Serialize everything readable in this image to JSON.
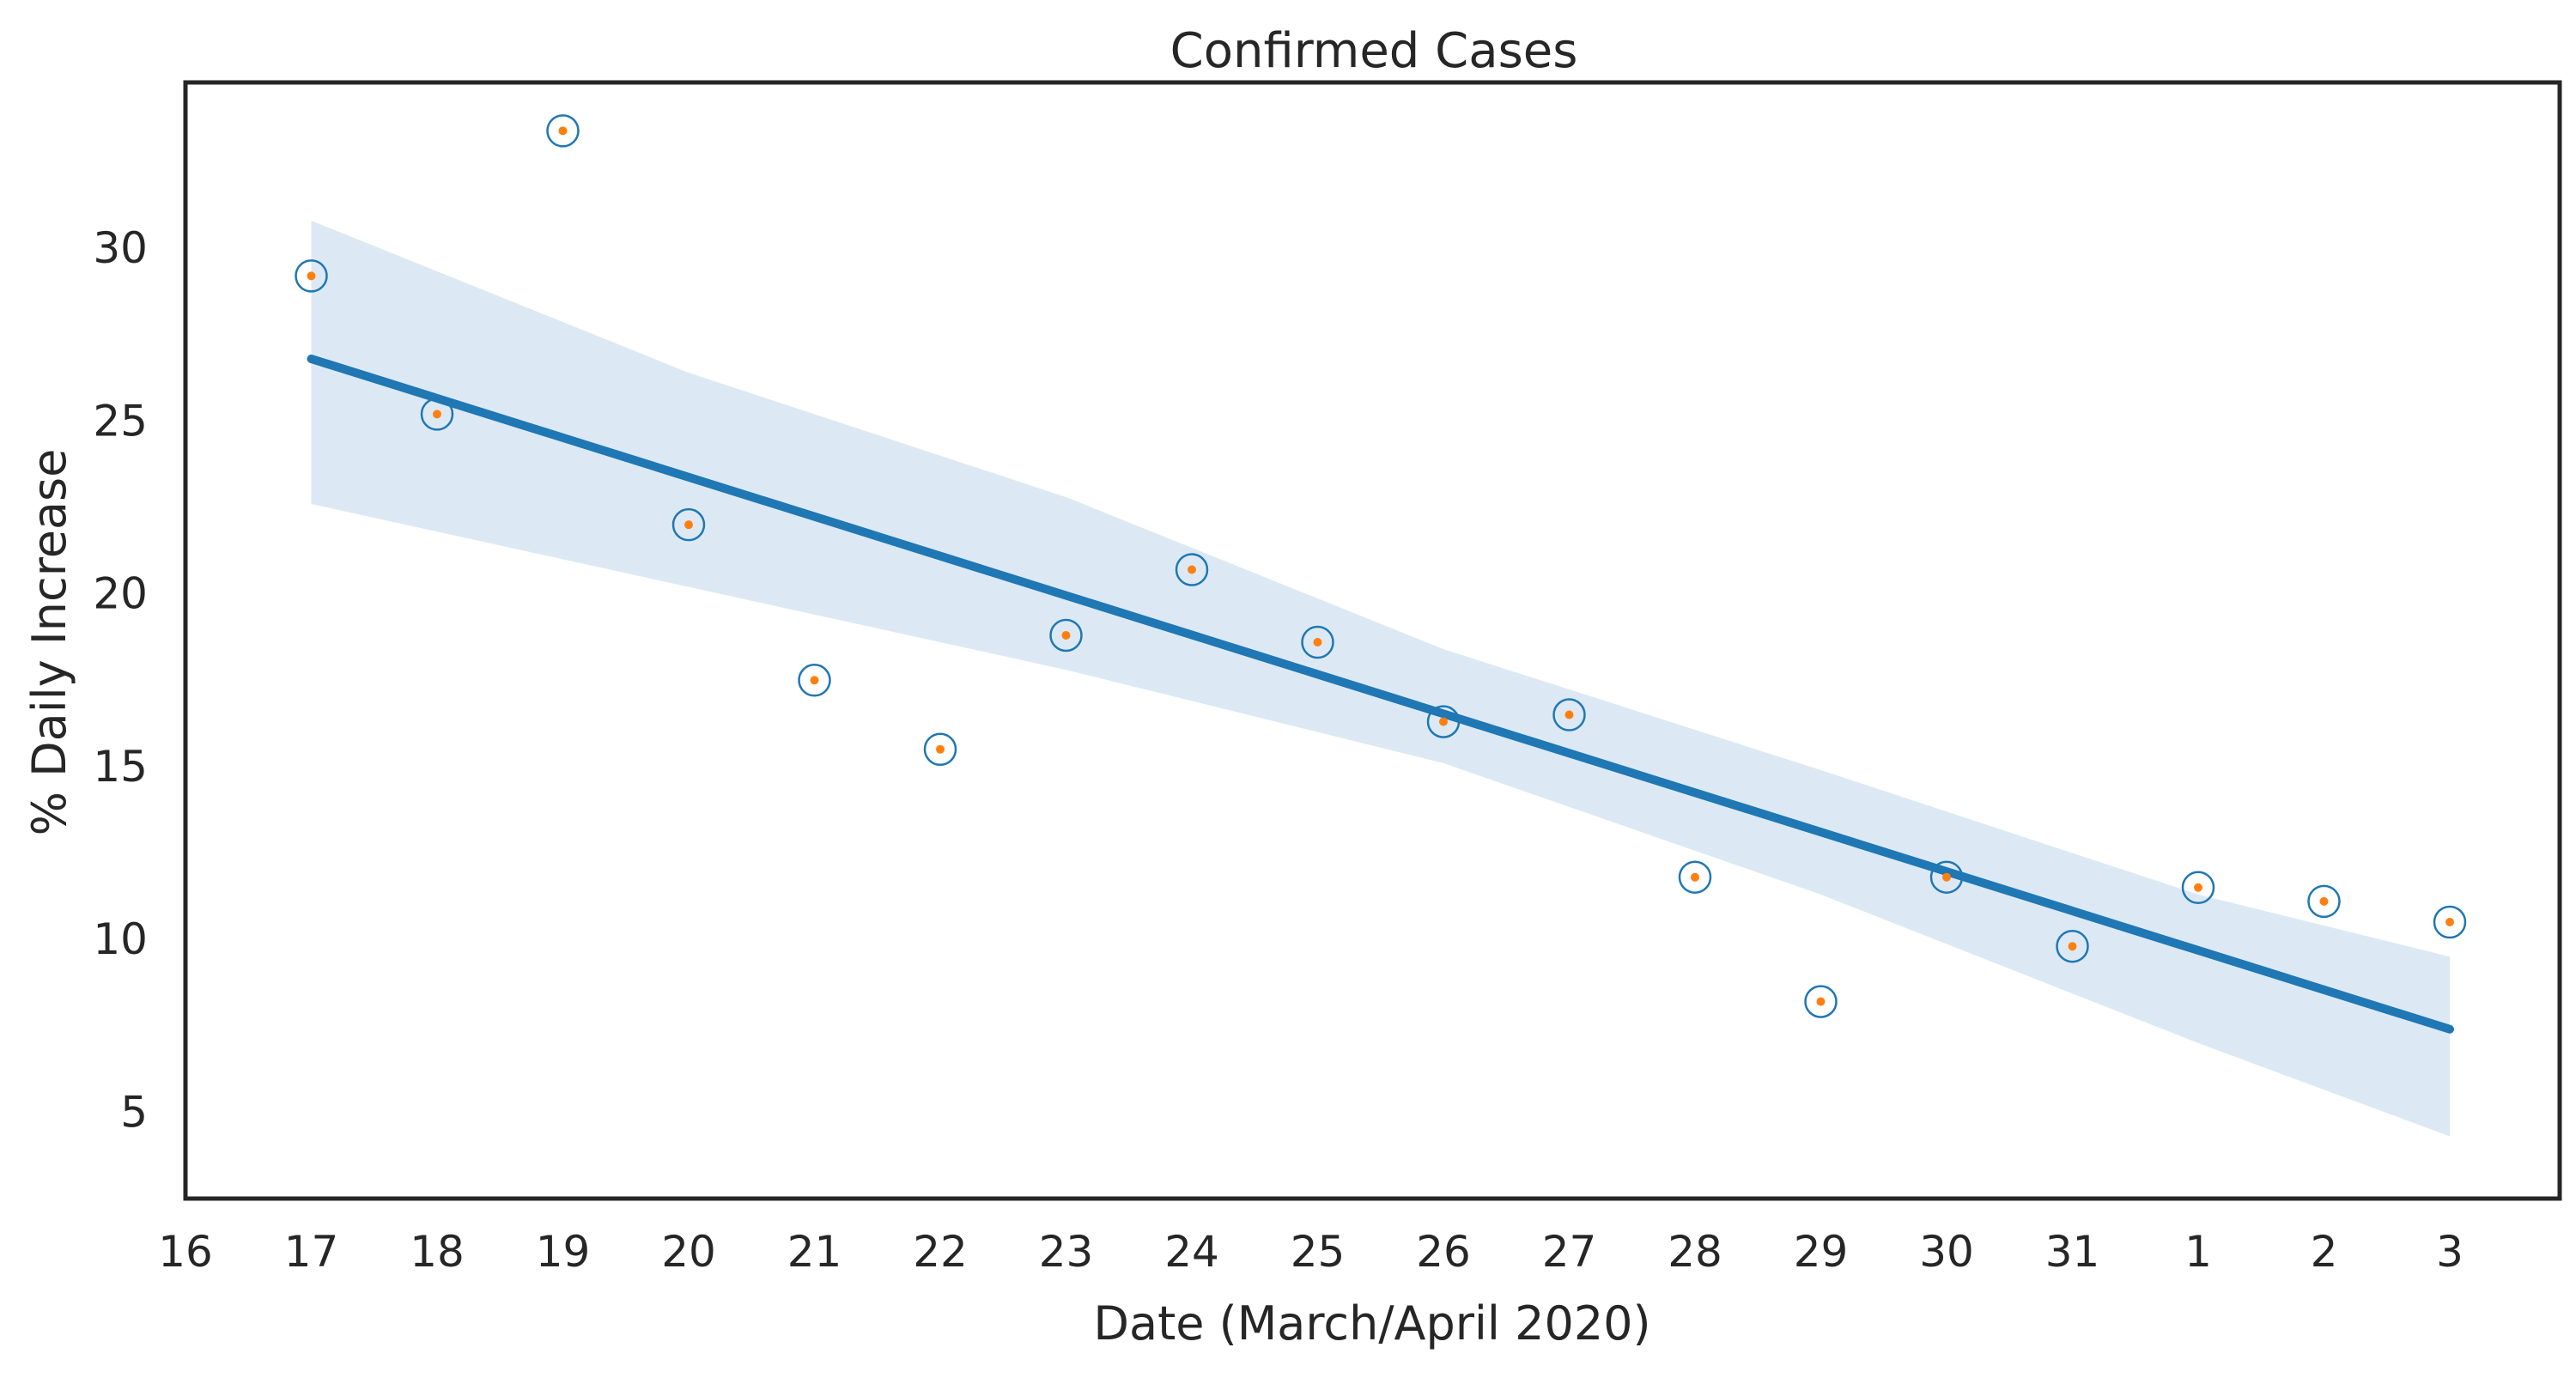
{
  "chart_data": {
    "type": "scatter",
    "title": "Confirmed Cases",
    "xlabel": "Date (March/April 2020)",
    "ylabel": "% Daily Increase",
    "x_tick_labels": [
      "16",
      "17",
      "18",
      "19",
      "20",
      "21",
      "22",
      "23",
      "24",
      "25",
      "26",
      "27",
      "28",
      "29",
      "30",
      "31",
      "1",
      "2",
      "3"
    ],
    "y_ticks": [
      5,
      10,
      15,
      20,
      25,
      30
    ],
    "xlim": [
      "2020-03-16",
      "2020-04-03"
    ],
    "ylim": [
      2.5,
      34.8
    ],
    "grid": false,
    "series": [
      {
        "x": [
          "2020-03-17",
          "2020-03-18",
          "2020-03-19",
          "2020-03-20",
          "2020-03-21",
          "2020-03-22",
          "2020-03-23",
          "2020-03-24",
          "2020-03-25",
          "2020-03-26",
          "2020-03-27",
          "2020-03-28",
          "2020-03-29",
          "2020-03-30",
          "2020-03-31",
          "2020-04-01",
          "2020-04-02",
          "2020-04-03"
        ],
        "values": [
          29.2,
          25.2,
          33.4,
          22.0,
          17.5,
          15.5,
          18.8,
          20.7,
          18.6,
          16.3,
          16.5,
          11.8,
          8.2,
          11.8,
          9.8,
          11.5,
          11.1,
          10.5
        ],
        "marker_style": "blue ring with orange center dot"
      }
    ],
    "regression": {
      "type": "linear",
      "color": "#1f77b4",
      "start": {
        "x": "2020-03-17",
        "y": 26.8
      },
      "end": {
        "x": "2020-04-03",
        "y": 7.4
      },
      "ci_band": {
        "color": "#dce9f4",
        "x": [
          "2020-03-17",
          "2020-03-20",
          "2020-03-23",
          "2020-03-26",
          "2020-03-29",
          "2020-04-01",
          "2020-04-03"
        ],
        "upper": [
          30.8,
          26.4,
          22.8,
          18.4,
          14.9,
          11.3,
          9.5
        ],
        "lower": [
          22.6,
          20.2,
          17.8,
          15.1,
          11.3,
          7.0,
          4.3
        ]
      }
    },
    "colors": {
      "ring": "#1f77b4",
      "dot": "#ff7f0e",
      "line": "#1f77b4",
      "band": "#dce9f4",
      "frame": "#262626"
    }
  }
}
